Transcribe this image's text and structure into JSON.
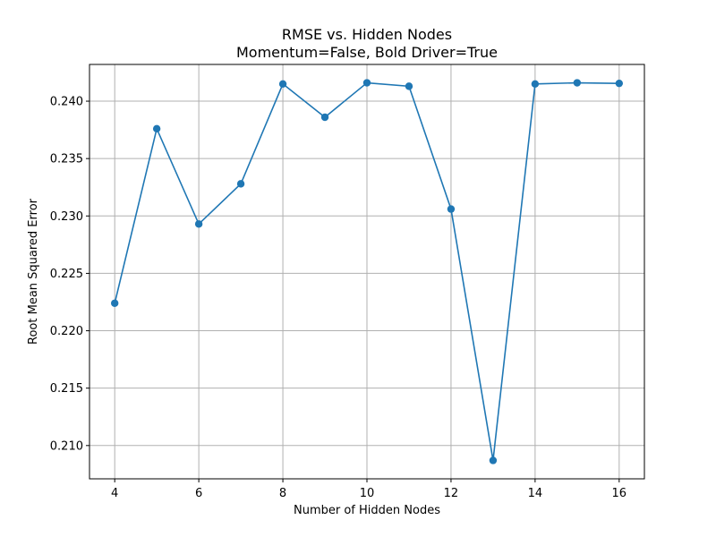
{
  "chart_data": {
    "type": "line",
    "title": "RMSE vs. Hidden Nodes",
    "subtitle": "Momentum=False, Bold Driver=True",
    "xlabel": "Number of Hidden Nodes",
    "ylabel": "Root Mean Squared Error",
    "x": [
      4,
      5,
      6,
      7,
      8,
      9,
      10,
      11,
      12,
      13,
      14,
      15,
      16
    ],
    "series": [
      {
        "values": [
          0.2224,
          0.2376,
          0.2293,
          0.2328,
          0.2415,
          0.2386,
          0.2416,
          0.2413,
          0.2306,
          0.2087,
          0.2415,
          0.2416,
          0.24155
        ]
      }
    ],
    "xlim": [
      3.4,
      16.6
    ],
    "ylim": [
      0.2071,
      0.2432
    ],
    "xticks": [
      4,
      6,
      8,
      10,
      12,
      14,
      16
    ],
    "yticks": [
      0.21,
      0.215,
      0.22,
      0.225,
      0.23,
      0.235,
      0.24
    ],
    "ytick_labels": [
      "0.210",
      "0.215",
      "0.220",
      "0.225",
      "0.230",
      "0.235",
      "0.240"
    ],
    "grid": true,
    "line_color": "#1f77b4",
    "marker": "circle"
  }
}
